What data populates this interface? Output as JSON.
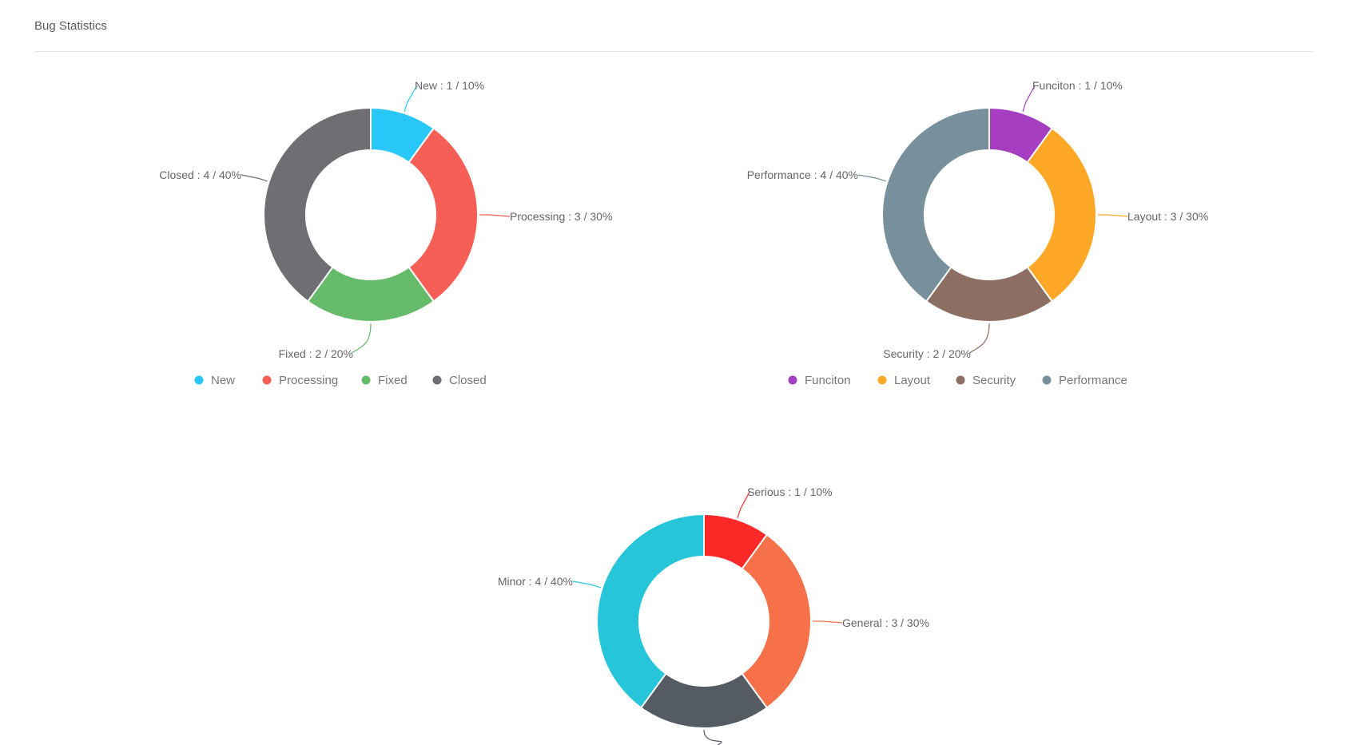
{
  "header": {
    "title": "Bug Statistics"
  },
  "chart_data": [
    {
      "type": "pie",
      "donut": true,
      "name": "status",
      "legend_position": "bottom",
      "slices": [
        {
          "name": "New",
          "value": 1,
          "percent": "10%",
          "label": "New : 1 / 10%",
          "color": "#29c7f7"
        },
        {
          "name": "Processing",
          "value": 3,
          "percent": "30%",
          "label": "Processing : 3 / 30%",
          "color": "#f65f56"
        },
        {
          "name": "Fixed",
          "value": 2,
          "percent": "20%",
          "label": "Fixed : 2 / 20%",
          "color": "#66bb6a"
        },
        {
          "name": "Closed",
          "value": 4,
          "percent": "40%",
          "label": "Closed : 4 / 40%",
          "color": "#6f6f73"
        }
      ]
    },
    {
      "type": "pie",
      "donut": true,
      "name": "category",
      "legend_position": "bottom",
      "slices": [
        {
          "name": "Funciton",
          "value": 1,
          "percent": "10%",
          "label": "Funciton : 1 / 10%",
          "color": "#a63ec1"
        },
        {
          "name": "Layout",
          "value": 3,
          "percent": "30%",
          "label": "Layout : 3 / 30%",
          "color": "#ffa726"
        },
        {
          "name": "Security",
          "value": 2,
          "percent": "20%",
          "label": "Security : 2 / 20%",
          "color": "#8d6e63"
        },
        {
          "name": "Performance",
          "value": 4,
          "percent": "40%",
          "label": "Performance : 4 / 40%",
          "color": "#78909c"
        }
      ]
    },
    {
      "type": "pie",
      "donut": true,
      "name": "severity",
      "legend_position": "bottom",
      "slices": [
        {
          "name": "Serious",
          "value": 1,
          "percent": "10%",
          "label": "Serious : 1 / 10%",
          "color": "#fd2828"
        },
        {
          "name": "General",
          "value": 3,
          "percent": "30%",
          "label": "General : 3 / 30%",
          "color": "#f67049"
        },
        {
          "name": "",
          "value": 2,
          "percent": "20%",
          "label": "",
          "color": "#545b63"
        },
        {
          "name": "Minor",
          "value": 4,
          "percent": "40%",
          "label": "Minor : 4 / 40%",
          "color": "#26c5da"
        }
      ]
    }
  ]
}
